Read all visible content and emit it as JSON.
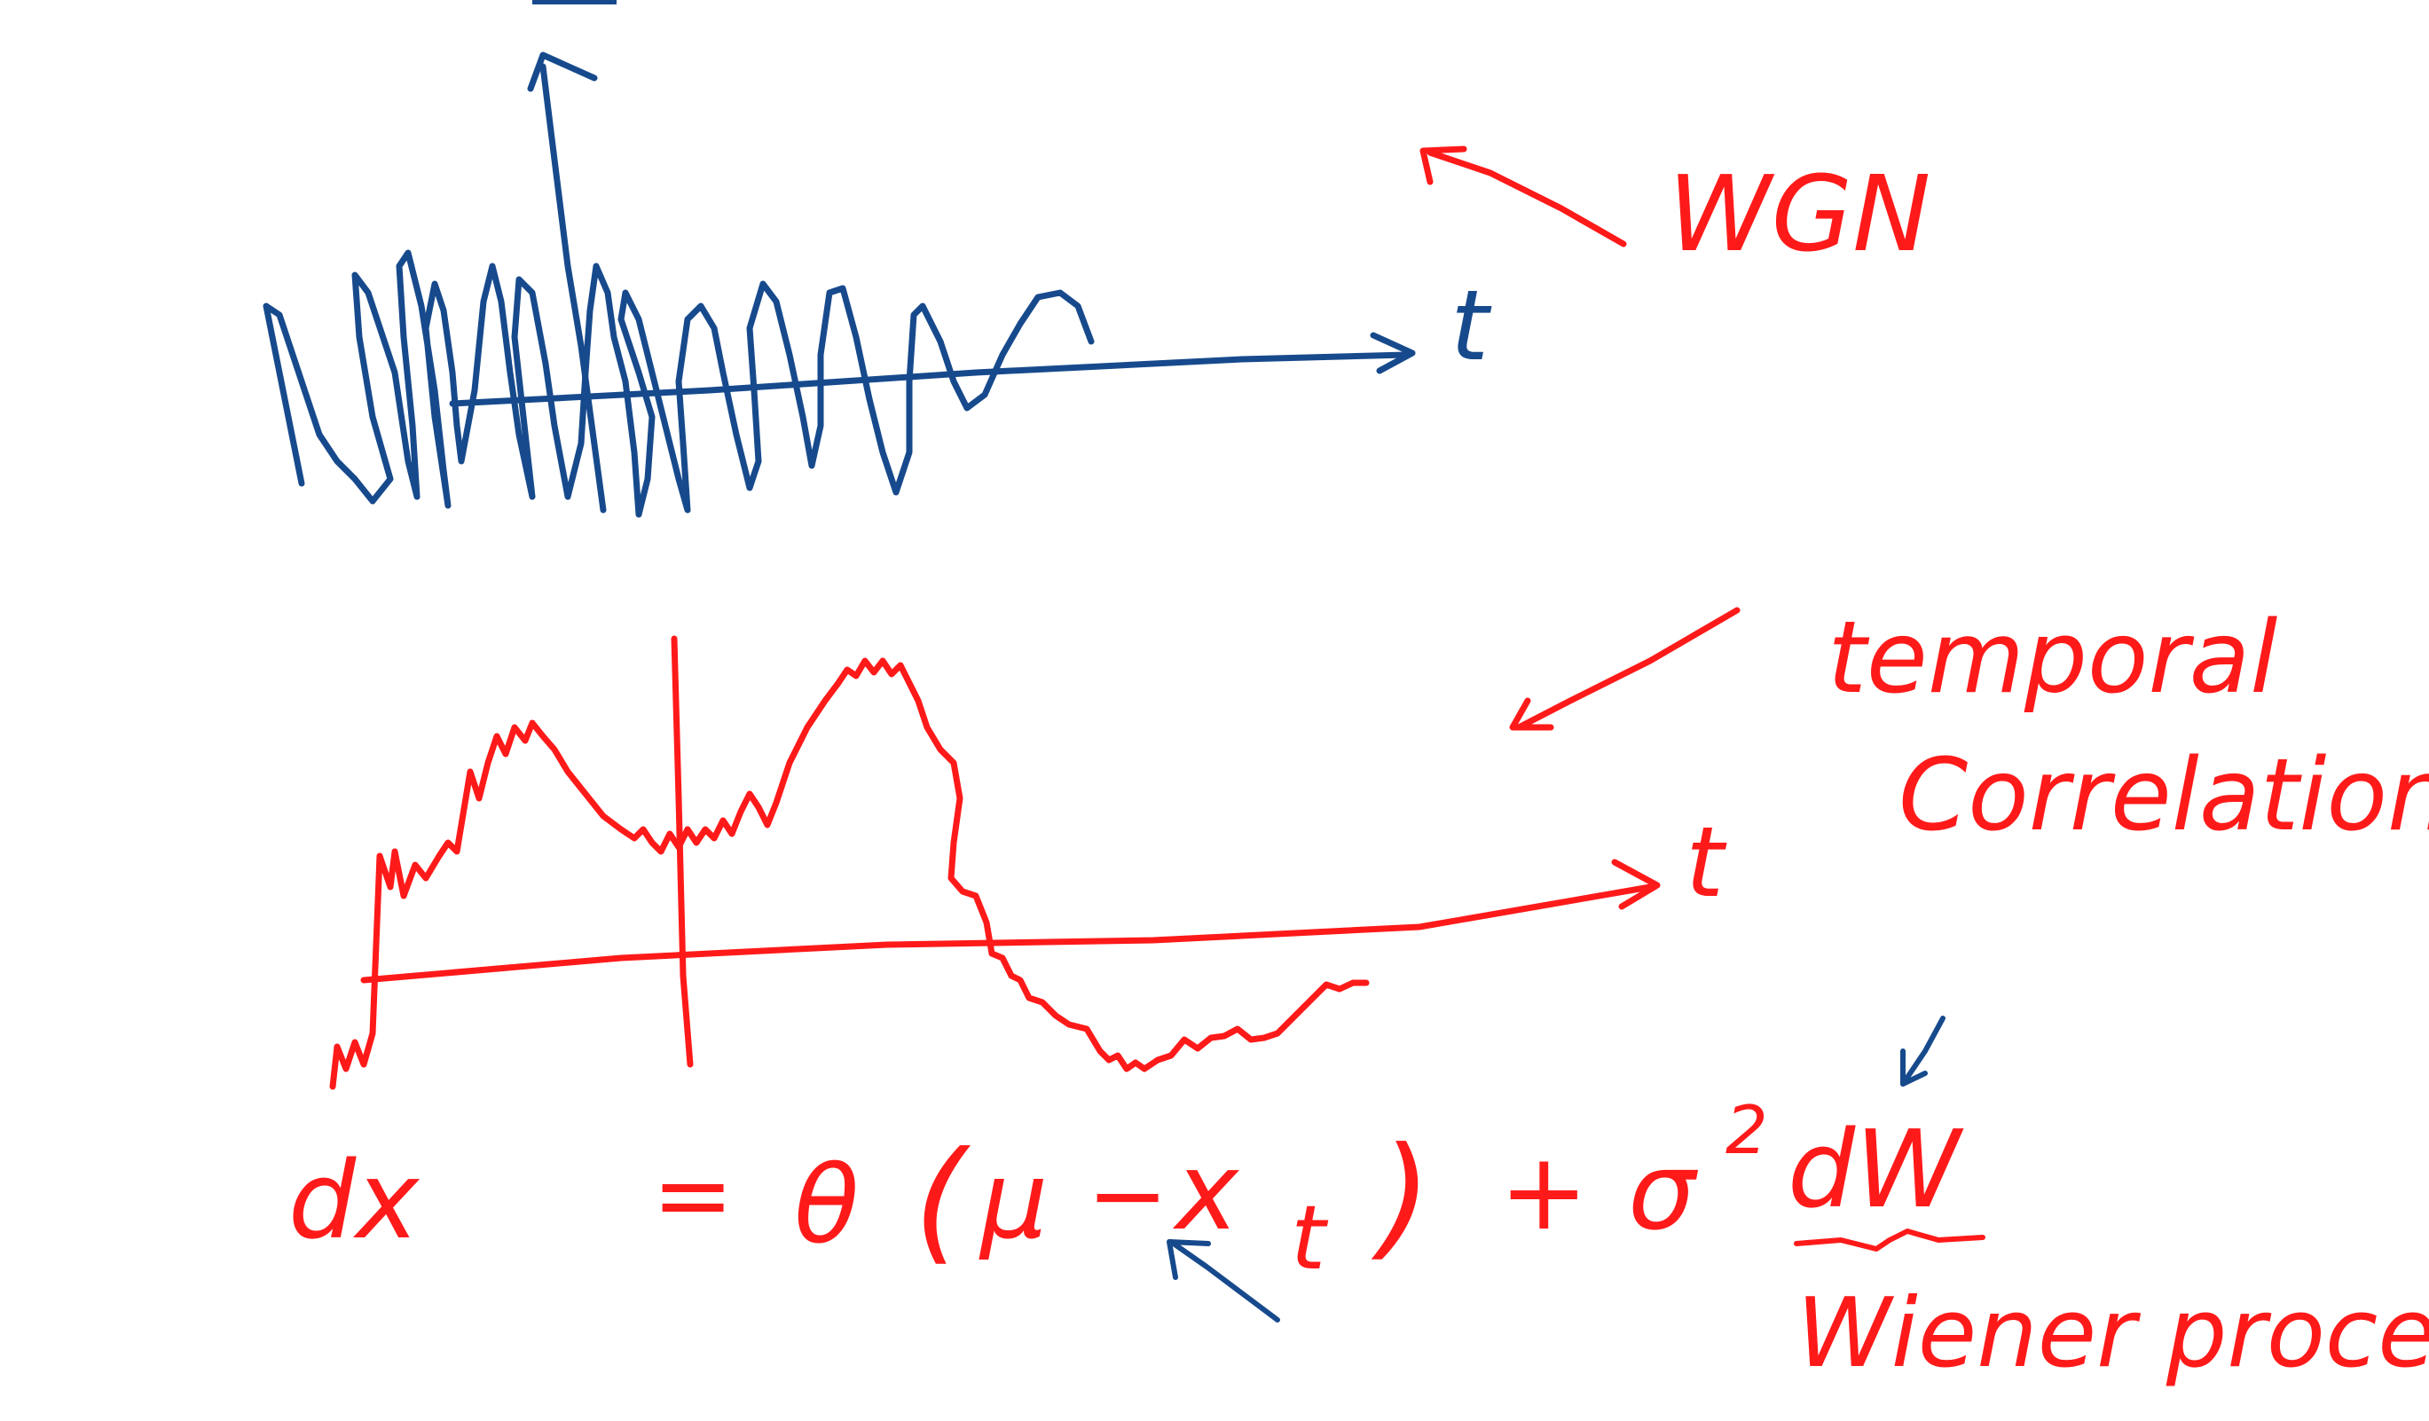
{
  "colors": {
    "blue_ink": "#174a8c",
    "red_ink": "#ff1a1a",
    "background": "#ffffff"
  },
  "top_plot": {
    "t_axis_label": "t",
    "annotation": "WGN"
  },
  "bottom_plot": {
    "t_axis_label": "t",
    "annotation_line1": "temporal",
    "annotation_line2": "Correlation"
  },
  "equation": {
    "lhs": "dx",
    "equals": "=",
    "theta": "θ",
    "open_paren": "(",
    "mu": "μ",
    "minus": "−",
    "x": "x",
    "subscript_t": "t",
    "close_paren": ")",
    "plus": "+",
    "sigma": "σ",
    "sigma_exponent": "2",
    "dW": "dW",
    "dW_label": "Wiener process"
  }
}
